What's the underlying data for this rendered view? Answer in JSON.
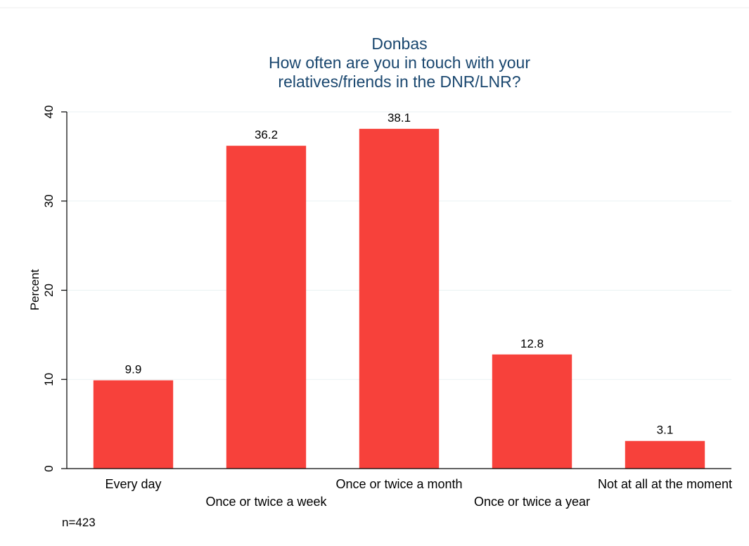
{
  "chart_data": {
    "type": "bar",
    "title": "Donbas",
    "subtitle_lines": [
      "How often are you in touch with your",
      "relatives/friends in the DNR/LNR?"
    ],
    "ylabel": "Percent",
    "xlabel": "",
    "ylim": [
      0,
      40
    ],
    "yticks": [
      0,
      10,
      20,
      30,
      40
    ],
    "categories": [
      "Every day",
      "Once or twice a week",
      "Once or twice a month",
      "Once or twice a year",
      "Not at all at the moment"
    ],
    "values": [
      9.9,
      36.2,
      38.1,
      12.8,
      3.1
    ],
    "data_labels": [
      "9.9",
      "36.2",
      "38.1",
      "12.8",
      "3.1"
    ],
    "grid": true,
    "legend": "none",
    "bar_color": "#f7413b",
    "note": "n=423"
  }
}
